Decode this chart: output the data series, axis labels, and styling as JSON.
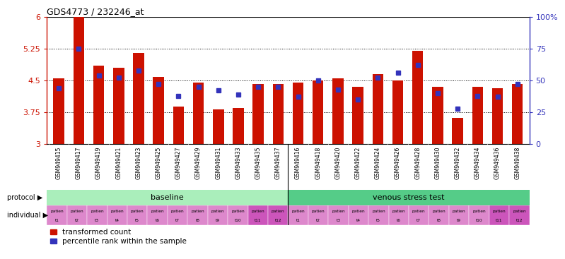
{
  "title": "GDS4773 / 232246_at",
  "samples": [
    "GSM949415",
    "GSM949417",
    "GSM949419",
    "GSM949421",
    "GSM949423",
    "GSM949425",
    "GSM949427",
    "GSM949429",
    "GSM949431",
    "GSM949433",
    "GSM949435",
    "GSM949437",
    "GSM949416",
    "GSM949418",
    "GSM949420",
    "GSM949422",
    "GSM949424",
    "GSM949426",
    "GSM949428",
    "GSM949430",
    "GSM949432",
    "GSM949434",
    "GSM949436",
    "GSM949438"
  ],
  "red_bar_values": [
    4.55,
    6.0,
    4.85,
    4.8,
    5.15,
    4.58,
    3.88,
    4.45,
    3.82,
    3.85,
    4.42,
    4.42,
    4.45,
    4.5,
    4.55,
    4.35,
    4.65,
    4.5,
    5.2,
    4.35,
    3.62,
    4.35,
    4.32,
    4.42
  ],
  "blue_pct": [
    44,
    75,
    54,
    52,
    58,
    47,
    38,
    45,
    42,
    39,
    45,
    45,
    37,
    50,
    43,
    35,
    52,
    56,
    62,
    40,
    28,
    38,
    37,
    47
  ],
  "baseline_count": 12,
  "ymin": 3.0,
  "ymax": 6.0,
  "yticks_left": [
    3.0,
    3.75,
    4.5,
    5.25,
    6.0
  ],
  "ytick_labels_left": [
    "3",
    "3.75",
    "4.5",
    "5.25",
    "6"
  ],
  "yticks_right": [
    0,
    25,
    50,
    75,
    100
  ],
  "ytick_labels_right": [
    "0",
    "25",
    "50",
    "75",
    "100%"
  ],
  "hlines": [
    3.75,
    4.5,
    5.25
  ],
  "protocol_labels": [
    "baseline",
    "venous stress test"
  ],
  "individual_top": "patien",
  "individual_nums": [
    "t 1",
    "t 2",
    "t 3",
    "t 4",
    "t 5",
    "t 6",
    "t 7",
    "t 8",
    "t 9",
    "t 10",
    "t 11",
    "t 12",
    "t 1",
    "t 2",
    "t 3",
    "t 4",
    "t 5",
    "t 6",
    "t 7",
    "t 8",
    "t 9",
    "t 10",
    "t 11",
    "t 12"
  ],
  "bar_color": "#cc1100",
  "blue_color": "#3333bb",
  "baseline_bg": "#aaeebb",
  "stress_bg": "#55cc88",
  "individual_bg": "#dd88cc",
  "left_axis_color": "#cc1100",
  "right_axis_color": "#3333bb",
  "bar_width": 0.55,
  "bar_baseline": 3.0,
  "fig_bg": "#ffffff",
  "xtick_area_bg": "#dddddd"
}
